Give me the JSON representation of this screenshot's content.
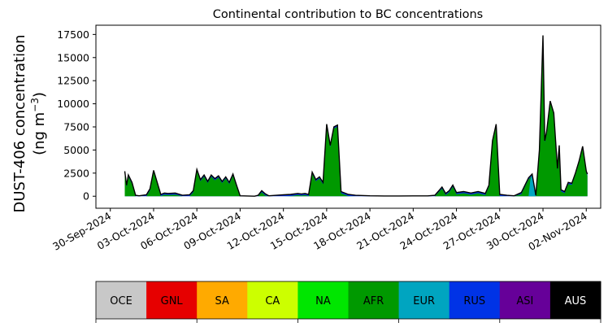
{
  "chart_data": {
    "type": "area",
    "title": "Continental contribution to BC concentrations",
    "ylabel_line1": "DUST-406 concentration",
    "ylabel_line2_prefix": "(ng m",
    "ylabel_line2_sup": "−3",
    "ylabel_line2_suffix": ")",
    "xlabel": "",
    "x_range": [
      "2024-09-29",
      "2024-11-03"
    ],
    "ylim": [
      -1300,
      18500
    ],
    "y_ticks": [
      0,
      2500,
      5000,
      7500,
      10000,
      12500,
      15000,
      17500
    ],
    "y_tick_labels": [
      "0",
      "2500",
      "5000",
      "7500",
      "10000",
      "12500",
      "15000",
      "17500"
    ],
    "x_ticks": [
      "2024-09-30",
      "2024-10-03",
      "2024-10-06",
      "2024-10-09",
      "2024-10-12",
      "2024-10-15",
      "2024-10-18",
      "2024-10-21",
      "2024-10-24",
      "2024-10-27",
      "2024-10-30",
      "2024-11-02"
    ],
    "x_tick_labels": [
      "30-Sep-2024",
      "03-Oct-2024",
      "06-Oct-2024",
      "09-Oct-2024",
      "12-Oct-2024",
      "15-Oct-2024",
      "18-Oct-2024",
      "21-Oct-2024",
      "24-Oct-2024",
      "27-Oct-2024",
      "30-Oct-2024",
      "02-Nov-2024"
    ],
    "grid": false,
    "series_colors": {
      "OCE": "#c8c8c8",
      "GNL": "#e60000",
      "SA": "#ffaa00",
      "CA": "#ccff00",
      "NA": "#00e600",
      "AFR": "#009900",
      "EUR": "#00a5c0",
      "RUS": "#0033e6",
      "ASI": "#660099",
      "AUS": "#000000"
    },
    "legend": [
      {
        "label": "OCE",
        "color": "#c8c8c8",
        "text_color": "#000000"
      },
      {
        "label": "GNL",
        "color": "#e60000",
        "text_color": "#000000"
      },
      {
        "label": "SA",
        "color": "#ffaa00",
        "text_color": "#000000"
      },
      {
        "label": "CA",
        "color": "#ccff00",
        "text_color": "#000000"
      },
      {
        "label": "NA",
        "color": "#00e600",
        "text_color": "#000000"
      },
      {
        "label": "AFR",
        "color": "#009900",
        "text_color": "#000000"
      },
      {
        "label": "EUR",
        "color": "#00a5c0",
        "text_color": "#000000"
      },
      {
        "label": "RUS",
        "color": "#0033e6",
        "text_color": "#000000"
      },
      {
        "label": "ASI",
        "color": "#660099",
        "text_color": "#000000"
      },
      {
        "label": "AUS",
        "color": "#000000",
        "text_color": "#ffffff"
      }
    ],
    "total": [
      [
        "2024-10-01",
        2700
      ],
      [
        "2024-10-01T03",
        1200
      ],
      [
        "2024-10-01T06",
        2300
      ],
      [
        "2024-10-01T12",
        1500
      ],
      [
        "2024-10-01T18",
        100
      ],
      [
        "2024-10-02",
        50
      ],
      [
        "2024-10-02T12",
        150
      ],
      [
        "2024-10-02T18",
        800
      ],
      [
        "2024-10-03",
        2800
      ],
      [
        "2024-10-03T06",
        1500
      ],
      [
        "2024-10-03T12",
        200
      ],
      [
        "2024-10-03T18",
        350
      ],
      [
        "2024-10-04",
        300
      ],
      [
        "2024-10-04T12",
        350
      ],
      [
        "2024-10-05",
        100
      ],
      [
        "2024-10-05T12",
        150
      ],
      [
        "2024-10-05T18",
        600
      ],
      [
        "2024-10-06",
        2900
      ],
      [
        "2024-10-06T06",
        1800
      ],
      [
        "2024-10-06T12",
        2300
      ],
      [
        "2024-10-06T18",
        1600
      ],
      [
        "2024-10-07",
        2300
      ],
      [
        "2024-10-07T06",
        1900
      ],
      [
        "2024-10-07T12",
        2200
      ],
      [
        "2024-10-07T18",
        1600
      ],
      [
        "2024-10-08",
        2100
      ],
      [
        "2024-10-08T06",
        1500
      ],
      [
        "2024-10-08T12",
        2400
      ],
      [
        "2024-10-08T18",
        1200
      ],
      [
        "2024-10-09",
        50
      ],
      [
        "2024-10-10",
        0
      ],
      [
        "2024-10-10T06",
        100
      ],
      [
        "2024-10-10T12",
        600
      ],
      [
        "2024-10-10T18",
        250
      ],
      [
        "2024-10-11",
        50
      ],
      [
        "2024-10-11T12",
        100
      ],
      [
        "2024-10-12",
        150
      ],
      [
        "2024-10-12T12",
        200
      ],
      [
        "2024-10-13",
        300
      ],
      [
        "2024-10-13T06",
        250
      ],
      [
        "2024-10-13T12",
        300
      ],
      [
        "2024-10-13T18",
        200
      ],
      [
        "2024-10-14",
        2600
      ],
      [
        "2024-10-14T06",
        1800
      ],
      [
        "2024-10-14T12",
        2100
      ],
      [
        "2024-10-14T18",
        1500
      ],
      [
        "2024-10-15",
        7800
      ],
      [
        "2024-10-15T06",
        5500
      ],
      [
        "2024-10-15T12",
        7500
      ],
      [
        "2024-10-15T18",
        7700
      ],
      [
        "2024-10-16",
        500
      ],
      [
        "2024-10-16T12",
        200
      ],
      [
        "2024-10-17",
        100
      ],
      [
        "2024-10-18",
        50
      ],
      [
        "2024-10-19",
        30
      ],
      [
        "2024-10-20",
        30
      ],
      [
        "2024-10-21",
        40
      ],
      [
        "2024-10-22",
        40
      ],
      [
        "2024-10-22T12",
        100
      ],
      [
        "2024-10-23",
        1000
      ],
      [
        "2024-10-23T06",
        300
      ],
      [
        "2024-10-23T12",
        600
      ],
      [
        "2024-10-23T18",
        1200
      ],
      [
        "2024-10-24",
        400
      ],
      [
        "2024-10-24T12",
        500
      ],
      [
        "2024-10-25",
        350
      ],
      [
        "2024-10-25T12",
        500
      ],
      [
        "2024-10-26",
        300
      ],
      [
        "2024-10-26T06",
        1200
      ],
      [
        "2024-10-26T12",
        6000
      ],
      [
        "2024-10-26T18",
        7800
      ],
      [
        "2024-10-27",
        200
      ],
      [
        "2024-10-27T12",
        100
      ],
      [
        "2024-10-28",
        50
      ],
      [
        "2024-10-28T12",
        400
      ],
      [
        "2024-10-29",
        2000
      ],
      [
        "2024-10-29T06",
        2400
      ],
      [
        "2024-10-29T12",
        100
      ],
      [
        "2024-10-29T18",
        5000
      ],
      [
        "2024-10-30",
        17400
      ],
      [
        "2024-10-30T03",
        6000
      ],
      [
        "2024-10-30T06",
        7000
      ],
      [
        "2024-10-30T12",
        10300
      ],
      [
        "2024-10-30T18",
        9000
      ],
      [
        "2024-10-31",
        3000
      ],
      [
        "2024-10-31T03",
        5500
      ],
      [
        "2024-10-31T06",
        700
      ],
      [
        "2024-10-31T12",
        500
      ],
      [
        "2024-10-31T18",
        1500
      ],
      [
        "2024-11-01",
        1400
      ],
      [
        "2024-11-01T06",
        2500
      ],
      [
        "2024-11-01T12",
        3800
      ],
      [
        "2024-11-01T18",
        5400
      ],
      [
        "2024-11-02",
        2700
      ],
      [
        "2024-11-02T02",
        2400
      ]
    ],
    "secondary_contributions": [
      {
        "series": "EUR",
        "points": [
          [
            "2024-10-29",
            0
          ],
          [
            "2024-10-29T03",
            1800
          ],
          [
            "2024-10-29T06",
            2400
          ],
          [
            "2024-10-29T09",
            1500
          ],
          [
            "2024-10-29T12",
            0
          ]
        ]
      },
      {
        "series": "CA",
        "points": [
          [
            "2024-10-20",
            0
          ],
          [
            "2024-10-20T06",
            60
          ],
          [
            "2024-10-21T12",
            60
          ],
          [
            "2024-10-21T18",
            0
          ]
        ]
      }
    ]
  }
}
